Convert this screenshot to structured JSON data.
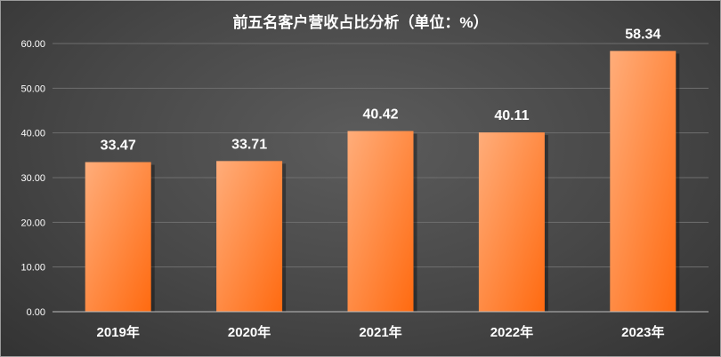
{
  "chart_data": {
    "type": "bar",
    "title": "前五名客户营收占比分析（单位：%）",
    "categories": [
      "2019年",
      "2020年",
      "2021年",
      "2022年",
      "2023年"
    ],
    "values": [
      33.47,
      33.71,
      40.42,
      40.11,
      58.34
    ],
    "value_labels": [
      "33.47",
      "33.71",
      "40.42",
      "40.11",
      "58.34"
    ],
    "yticks": [
      "0.00",
      "10.00",
      "20.00",
      "30.00",
      "40.00",
      "50.00",
      "60.00"
    ],
    "ylim": [
      0,
      60
    ],
    "grid": true,
    "legend": "none",
    "colors": {
      "bar_top": "#ffad7a",
      "bar_bottom": "#ff6a10",
      "background": "#474747",
      "text": "#ffffff"
    }
  }
}
